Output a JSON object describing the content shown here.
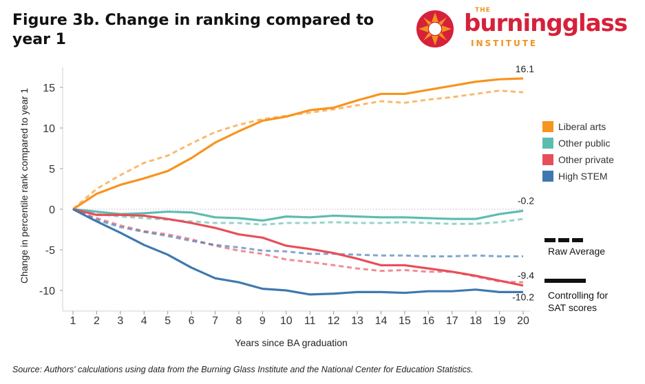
{
  "title": "Figure 3b. Change in ranking compared to year 1",
  "logo": {
    "the": "THE",
    "word_a": "burning",
    "word_b": "glass",
    "institute": "INSTITUTE",
    "brand_red": "#d7203a",
    "brand_orange": "#f0931d"
  },
  "source": "Source: Authors' calculations using data from the Burning Glass Institute and the National Center for Education Statistics.",
  "key": {
    "raw": "Raw Average",
    "controlled_line1": "Controlling for",
    "controlled_line2": "SAT scores"
  },
  "chart_data": {
    "type": "line",
    "xlabel": "Years since BA graduation",
    "ylabel": "Change in percentile rank compared to year 1",
    "x": [
      1,
      2,
      3,
      4,
      5,
      6,
      7,
      8,
      9,
      10,
      11,
      12,
      13,
      14,
      15,
      16,
      17,
      18,
      19,
      20
    ],
    "ylim": [
      -12,
      17
    ],
    "yticks": [
      15,
      10,
      5,
      0,
      -5,
      -10
    ],
    "ytick_labels": [
      "15",
      "10",
      "5",
      "0",
      "-5",
      "-10"
    ],
    "xtick_labels": [
      "1",
      "2",
      "3",
      "4",
      "5",
      "6",
      "7",
      "8",
      "9",
      "10",
      "11",
      "12",
      "13",
      "14",
      "15",
      "16",
      "17",
      "18",
      "19",
      "20"
    ],
    "series": [
      {
        "name": "Liberal arts",
        "color": "#f7941d",
        "raw": [
          0,
          1.9,
          3.0,
          3.8,
          4.7,
          6.3,
          8.2,
          9.6,
          10.9,
          11.4,
          12.2,
          12.5,
          13.4,
          14.2,
          14.2,
          14.7,
          15.2,
          15.7,
          16.0,
          16.1
        ],
        "controlled": [
          0,
          2.5,
          4.2,
          5.7,
          6.6,
          8.1,
          9.5,
          10.4,
          11.1,
          11.5,
          11.9,
          12.3,
          12.8,
          13.3,
          13.1,
          13.5,
          13.8,
          14.2,
          14.6,
          14.4
        ],
        "end_label": "16.1"
      },
      {
        "name": "Other public",
        "color": "#5dbcb0",
        "raw": [
          0,
          -0.3,
          -0.6,
          -0.5,
          -0.3,
          -0.4,
          -1.0,
          -1.1,
          -1.4,
          -0.9,
          -1.0,
          -0.8,
          -0.9,
          -1.0,
          -1.0,
          -1.1,
          -1.2,
          -1.2,
          -0.6,
          -0.2
        ],
        "controlled": [
          0,
          -0.6,
          -0.9,
          -1.1,
          -1.3,
          -1.5,
          -1.7,
          -1.7,
          -1.9,
          -1.7,
          -1.7,
          -1.6,
          -1.7,
          -1.7,
          -1.6,
          -1.7,
          -1.8,
          -1.8,
          -1.6,
          -1.2
        ],
        "end_label": "-0.2"
      },
      {
        "name": "Other private",
        "color": "#e84e59",
        "raw": [
          0,
          -0.7,
          -0.7,
          -0.8,
          -1.2,
          -1.7,
          -2.3,
          -3.1,
          -3.5,
          -4.5,
          -4.9,
          -5.4,
          -6.1,
          -6.9,
          -6.9,
          -7.3,
          -7.7,
          -8.2,
          -8.8,
          -9.4
        ],
        "controlled": [
          0,
          -1.1,
          -2.0,
          -2.7,
          -3.1,
          -3.7,
          -4.5,
          -5.1,
          -5.5,
          -6.2,
          -6.5,
          -6.9,
          -7.3,
          -7.6,
          -7.5,
          -7.7,
          -7.7,
          -8.3,
          -8.9,
          -9.0
        ],
        "end_label": "-9.4"
      },
      {
        "name": "High STEM",
        "color": "#3f78b0",
        "raw": [
          0,
          -1.5,
          -2.9,
          -4.4,
          -5.6,
          -7.2,
          -8.5,
          -9.0,
          -9.8,
          -10.0,
          -10.5,
          -10.4,
          -10.2,
          -10.2,
          -10.3,
          -10.1,
          -10.1,
          -9.9,
          -10.2,
          -10.2
        ],
        "controlled": [
          0,
          -1.3,
          -2.2,
          -2.8,
          -3.3,
          -3.9,
          -4.4,
          -4.7,
          -5.1,
          -5.2,
          -5.5,
          -5.5,
          -5.6,
          -5.7,
          -5.7,
          -5.8,
          -5.8,
          -5.7,
          -5.8,
          -5.8
        ],
        "end_label": "-10.2"
      }
    ]
  }
}
